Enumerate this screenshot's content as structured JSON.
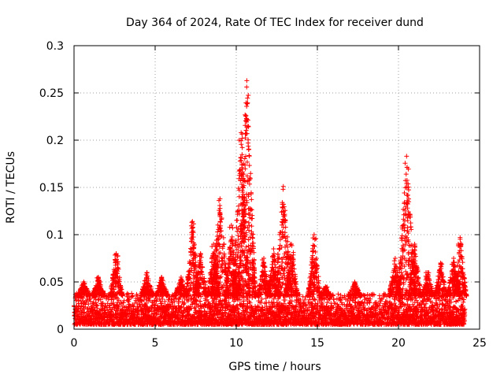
{
  "chart_data": {
    "type": "scatter",
    "title": "Day 364 of 2024, Rate Of TEC Index for receiver dund",
    "xlabel": "GPS time / hours",
    "ylabel": "ROTI / TECUs",
    "xlim": [
      0,
      25
    ],
    "ylim": [
      0,
      0.3
    ],
    "xticks": [
      0,
      5,
      10,
      15,
      20,
      25
    ],
    "yticks": [
      0,
      0.05,
      0.1,
      0.15,
      0.2,
      0.25,
      0.3
    ],
    "xtick_labels": [
      "0",
      "5",
      "10",
      "15",
      "20",
      "25"
    ],
    "ytick_labels": [
      "0",
      "0.05",
      "0.1",
      "0.15",
      "0.2",
      "0.25",
      "0.3"
    ],
    "grid": true,
    "marker": "plus",
    "color": "#ff0000",
    "series": [
      {
        "name": "ROTI",
        "background": {
          "x_range": [
            0.0,
            24.1
          ],
          "typical_range": [
            0.005,
            0.035
          ]
        },
        "peaks": [
          {
            "x": 0.6,
            "y": 0.05
          },
          {
            "x": 1.5,
            "y": 0.055
          },
          {
            "x": 2.6,
            "y": 0.08
          },
          {
            "x": 4.5,
            "y": 0.06
          },
          {
            "x": 5.4,
            "y": 0.055
          },
          {
            "x": 6.6,
            "y": 0.055
          },
          {
            "x": 7.3,
            "y": 0.114
          },
          {
            "x": 7.8,
            "y": 0.08
          },
          {
            "x": 8.6,
            "y": 0.09
          },
          {
            "x": 9.0,
            "y": 0.138
          },
          {
            "x": 9.7,
            "y": 0.11
          },
          {
            "x": 10.3,
            "y": 0.208
          },
          {
            "x": 10.65,
            "y": 0.263
          },
          {
            "x": 11.7,
            "y": 0.075
          },
          {
            "x": 12.3,
            "y": 0.085
          },
          {
            "x": 12.9,
            "y": 0.151
          },
          {
            "x": 13.4,
            "y": 0.09
          },
          {
            "x": 14.8,
            "y": 0.1
          },
          {
            "x": 15.5,
            "y": 0.045
          },
          {
            "x": 17.3,
            "y": 0.05
          },
          {
            "x": 19.8,
            "y": 0.075
          },
          {
            "x": 20.5,
            "y": 0.183
          },
          {
            "x": 21.0,
            "y": 0.09
          },
          {
            "x": 21.8,
            "y": 0.06
          },
          {
            "x": 22.6,
            "y": 0.07
          },
          {
            "x": 23.4,
            "y": 0.075
          },
          {
            "x": 23.8,
            "y": 0.097
          }
        ]
      }
    ]
  }
}
